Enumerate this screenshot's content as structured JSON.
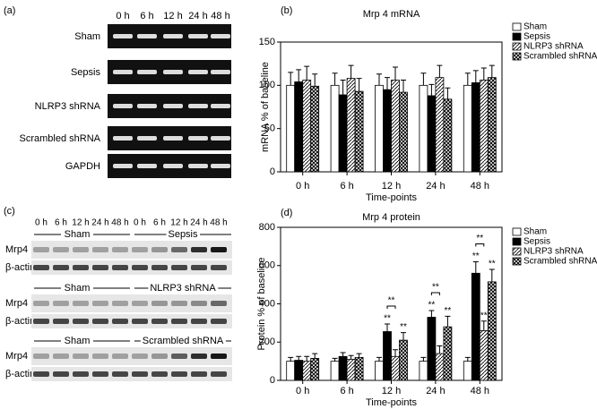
{
  "panel_labels": [
    "(a)",
    "(b)",
    "(c)",
    "(d)"
  ],
  "gel_a": {
    "columns": [
      "0 h",
      "6 h",
      "12 h",
      "24 h",
      "48 h"
    ],
    "rows": [
      "Sham",
      "Sepsis",
      "NLRP3 shRNA",
      "Scrambled shRNA",
      "GAPDH"
    ]
  },
  "blot_c": {
    "columns": [
      "0 h",
      "6 h",
      "12 h",
      "24 h",
      "48 h"
    ],
    "groups": [
      {
        "left": "Sham",
        "right": "Sepsis"
      },
      {
        "left": "Sham",
        "right": "NLRP3 shRNA"
      },
      {
        "left": "Sham",
        "right": "Scrambled shRNA"
      }
    ],
    "rows": [
      "Mrp4",
      "β-actin"
    ]
  },
  "chart_data": [
    {
      "type": "bar",
      "title": "Mrp 4 mRNA",
      "x_label": "Time-points",
      "y_label": "mRNA % of baseline",
      "categories": [
        "0 h",
        "6 h",
        "12 h",
        "24 h",
        "48 h"
      ],
      "ylim": [
        0,
        150
      ],
      "yticks": [
        0,
        50,
        100,
        150
      ],
      "legend": "top-right",
      "series": [
        {
          "name": "Sham",
          "color": "#ffffff",
          "pattern": "none",
          "values": [
            100,
            100,
            100,
            100,
            100
          ],
          "errors": [
            15,
            14,
            13,
            14,
            14
          ]
        },
        {
          "name": "Sepsis",
          "color": "#000000",
          "pattern": "solid",
          "values": [
            104,
            89,
            95,
            88,
            103
          ],
          "errors": [
            14,
            17,
            14,
            13,
            14
          ]
        },
        {
          "name": "NLRP3 shRNA",
          "color": "#000000",
          "pattern": "diagonal",
          "values": [
            106,
            108,
            106,
            109,
            106
          ],
          "errors": [
            16,
            15,
            15,
            14,
            14
          ]
        },
        {
          "name": "Scrambled shRNA",
          "color": "#000000",
          "pattern": "crosshatch",
          "values": [
            99,
            93,
            92,
            84,
            109
          ],
          "errors": [
            14,
            15,
            14,
            13,
            14
          ]
        }
      ]
    },
    {
      "type": "bar",
      "title": "Mrp 4 protein",
      "x_label": "Time-points",
      "y_label": "Protein % of baseline",
      "categories": [
        "0 h",
        "6 h",
        "12 h",
        "24 h",
        "48 h"
      ],
      "ylim": [
        0,
        800
      ],
      "yticks": [
        0,
        200,
        400,
        600,
        800
      ],
      "legend": "top-right",
      "series": [
        {
          "name": "Sham",
          "color": "#ffffff",
          "pattern": "none",
          "values": [
            100,
            100,
            100,
            100,
            100
          ],
          "errors": [
            20,
            15,
            20,
            20,
            20
          ]
        },
        {
          "name": "Sepsis",
          "color": "#000000",
          "pattern": "solid",
          "values": [
            105,
            125,
            255,
            330,
            560
          ],
          "errors": [
            20,
            20,
            40,
            35,
            60
          ],
          "annotations": [
            null,
            null,
            "**",
            "**",
            "**"
          ]
        },
        {
          "name": "NLRP3 shRNA",
          "color": "#000000",
          "pattern": "diagonal",
          "values": [
            100,
            110,
            125,
            140,
            260
          ],
          "errors": [
            25,
            20,
            35,
            40,
            50
          ],
          "annotations": [
            null,
            null,
            null,
            null,
            "**"
          ]
        },
        {
          "name": "Scrambled shRNA",
          "color": "#000000",
          "pattern": "crosshatch",
          "values": [
            115,
            120,
            210,
            280,
            515
          ],
          "errors": [
            25,
            20,
            40,
            55,
            65
          ],
          "annotations": [
            null,
            null,
            "**",
            "**",
            "**"
          ]
        }
      ],
      "brackets": [
        null,
        null,
        "**",
        "**",
        "**"
      ]
    }
  ]
}
